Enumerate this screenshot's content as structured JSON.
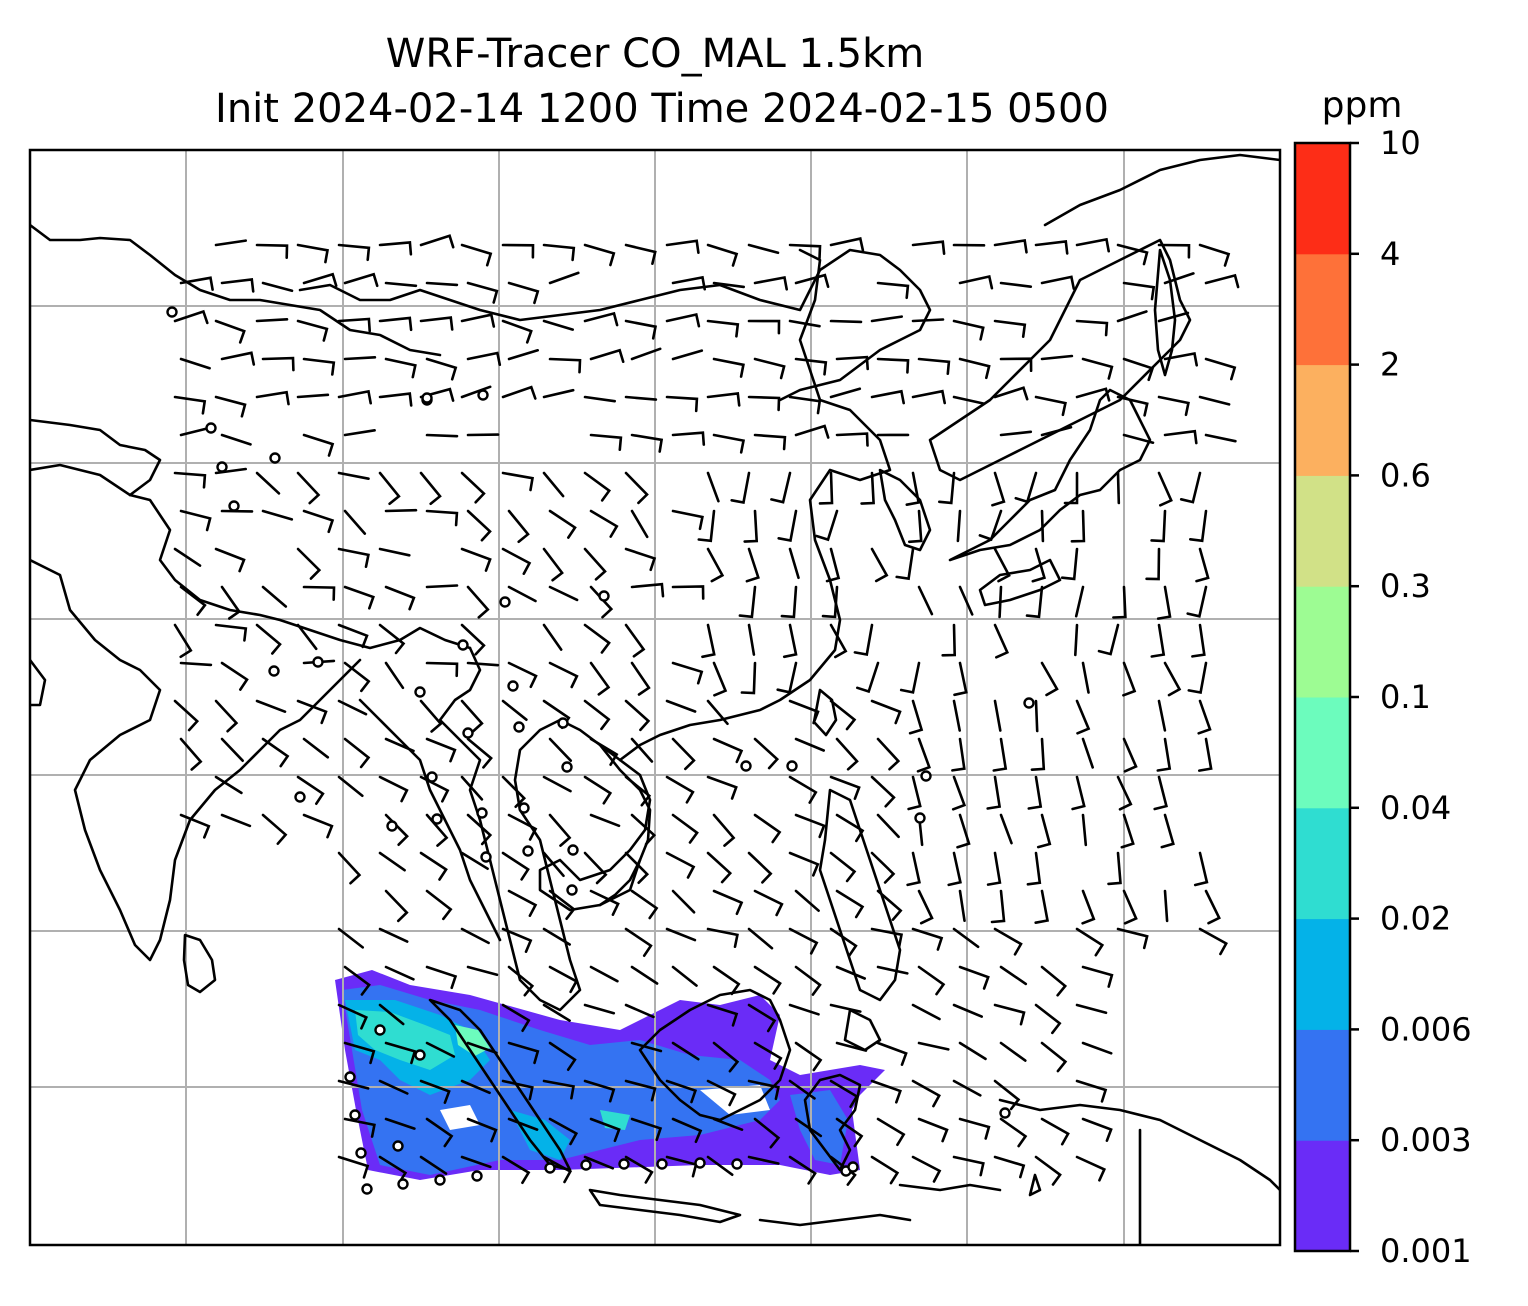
{
  "title": {
    "line1": "WRF-Tracer CO_MAL 1.5km",
    "line2": "Init 2024-02-14 1200 Time 2024-02-15 0500"
  },
  "colorbar": {
    "unit": "ppm",
    "levels": [
      "0.001",
      "0.003",
      "0.006",
      "0.02",
      "0.04",
      "0.1",
      "0.3",
      "0.6",
      "2",
      "4",
      "10"
    ],
    "colors": [
      "#6a2cf7",
      "#3473f2",
      "#04b2e8",
      "#2fddd1",
      "#6cfcbd",
      "#9dfc93",
      "#d1e187",
      "#fcb05f",
      "#fe7139",
      "#fd2d17"
    ]
  },
  "map": {
    "gridlines": true,
    "grid_color": "#b0b0b0",
    "coastline_color": "#000000",
    "tracer_fill_colors": [
      "#6a2cf7",
      "#3473f2",
      "#04b2e8",
      "#2fddd1",
      "#6cfcbd"
    ]
  }
}
